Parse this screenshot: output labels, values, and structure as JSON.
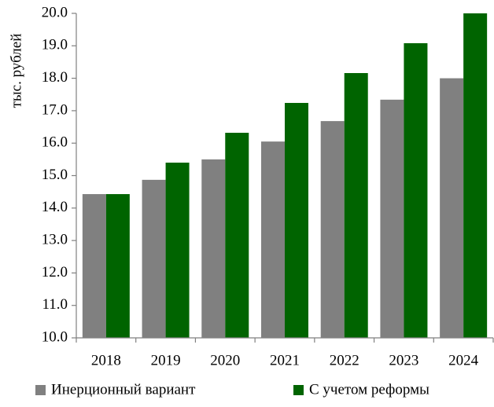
{
  "chart_data": {
    "type": "bar",
    "y_label": "тыс. рублей",
    "categories": [
      "2018",
      "2019",
      "2020",
      "2021",
      "2022",
      "2023",
      "2024"
    ],
    "series": [
      {
        "name": "Инерционный вариант",
        "color": "#808080",
        "values": [
          14.43,
          14.87,
          15.5,
          16.05,
          16.68,
          17.34,
          18.0
        ]
      },
      {
        "name": "С учетом реформы",
        "color": "#006400",
        "values": [
          14.43,
          15.4,
          16.32,
          17.24,
          18.16,
          19.08,
          20.0
        ]
      }
    ],
    "ylim": [
      10,
      20
    ],
    "yticks": [
      {
        "value": 10,
        "label": "10.0"
      },
      {
        "value": 11,
        "label": "11.0"
      },
      {
        "value": 12,
        "label": "12.0"
      },
      {
        "value": 13,
        "label": "13.0"
      },
      {
        "value": 14,
        "label": "14.0"
      },
      {
        "value": 15,
        "label": "15.0"
      },
      {
        "value": 16,
        "label": "16.0"
      },
      {
        "value": 17,
        "label": "17.0"
      },
      {
        "value": 18,
        "label": "18.0"
      },
      {
        "value": 19,
        "label": "19.0"
      },
      {
        "value": 20,
        "label": "20.0"
      }
    ],
    "grid": false,
    "legend": "bottom"
  }
}
